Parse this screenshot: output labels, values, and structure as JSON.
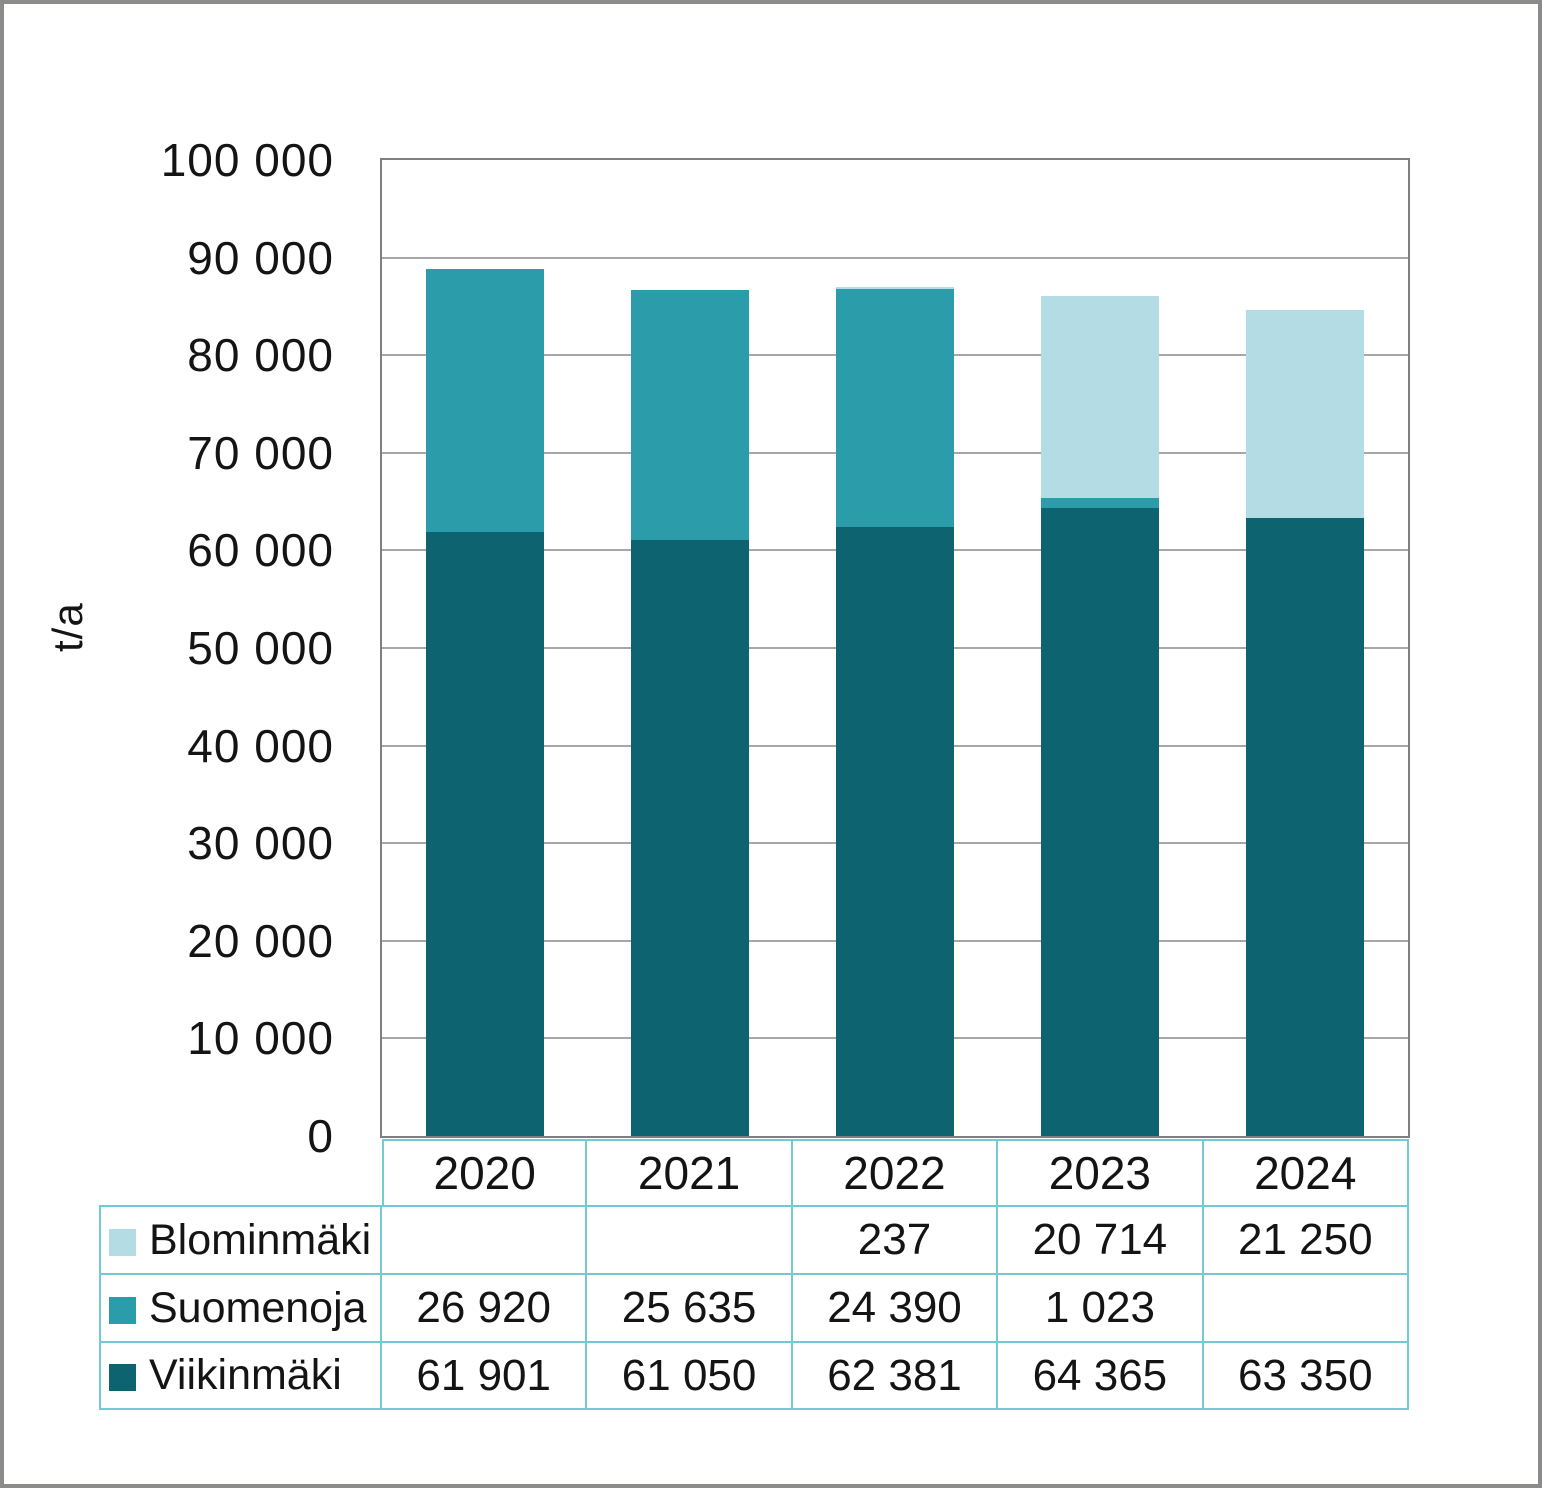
{
  "chart_data": {
    "type": "bar",
    "stacked": true,
    "title": "",
    "xlabel": "",
    "ylabel": "t/a",
    "categories": [
      "2020",
      "2021",
      "2022",
      "2023",
      "2024"
    ],
    "series": [
      {
        "name": "Viikinmäki",
        "color": "#0d636f",
        "values": [
          61901,
          61050,
          62381,
          64365,
          63350
        ],
        "display": [
          "61 901",
          "61 050",
          "62 381",
          "64 365",
          "63 350"
        ]
      },
      {
        "name": "Suomenoja",
        "color": "#2b9daa",
        "values": [
          26920,
          25635,
          24390,
          1023,
          null
        ],
        "display": [
          "26 920",
          "25 635",
          "24 390",
          "1 023",
          ""
        ]
      },
      {
        "name": "Blominmäki",
        "color": "#b3dce4",
        "values": [
          null,
          null,
          237,
          20714,
          21250
        ],
        "display": [
          "",
          "",
          "237",
          "20 714",
          "21 250"
        ]
      }
    ],
    "ylim": [
      0,
      100000
    ],
    "y_tick_labels": [
      "100 000",
      "90 000",
      "80 000",
      "70 000",
      "60 000",
      "50 000",
      "40 000",
      "30 000",
      "20 000",
      "10 000",
      "0"
    ],
    "grid": true,
    "legend_position": "table rows left of embedded data table"
  },
  "styles": {
    "background": "#ffffff",
    "frame_color": "#8b8b89",
    "plot_border_color": "#7f7f7f",
    "grid_color": "#a7a7a7",
    "table_border_color": "#74cad4",
    "text_color": "#141414"
  }
}
